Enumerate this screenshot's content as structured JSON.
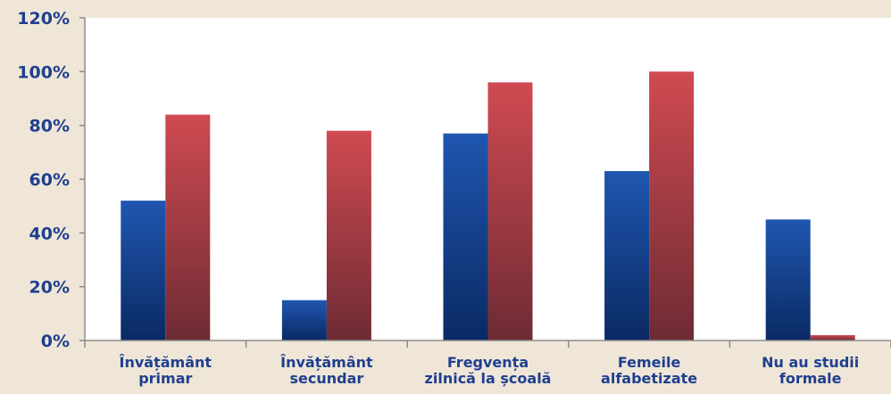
{
  "chart_data": {
    "type": "bar",
    "categories": [
      [
        "Învățământ",
        "primar"
      ],
      [
        "Învățământ",
        "secundar"
      ],
      [
        "Fregvența",
        "zilnică la școală"
      ],
      [
        "Femeile",
        "alfabetizate"
      ],
      [
        "Nu au studii",
        "formale"
      ]
    ],
    "series": [
      {
        "values": [
          52,
          15,
          77,
          63,
          45
        ],
        "color": "#123f8c"
      },
      {
        "values": [
          84,
          78,
          96,
          100,
          2
        ],
        "color": "#c0464c"
      }
    ],
    "ylim": [
      0,
      120
    ],
    "yticks": [
      "0%",
      "20%",
      "40%",
      "60%",
      "80%",
      "100%",
      "120%"
    ],
    "ytick_values": [
      0,
      20,
      40,
      60,
      80,
      100,
      120
    ],
    "grid": false,
    "title": "",
    "xlabel": "",
    "ylabel": ""
  }
}
